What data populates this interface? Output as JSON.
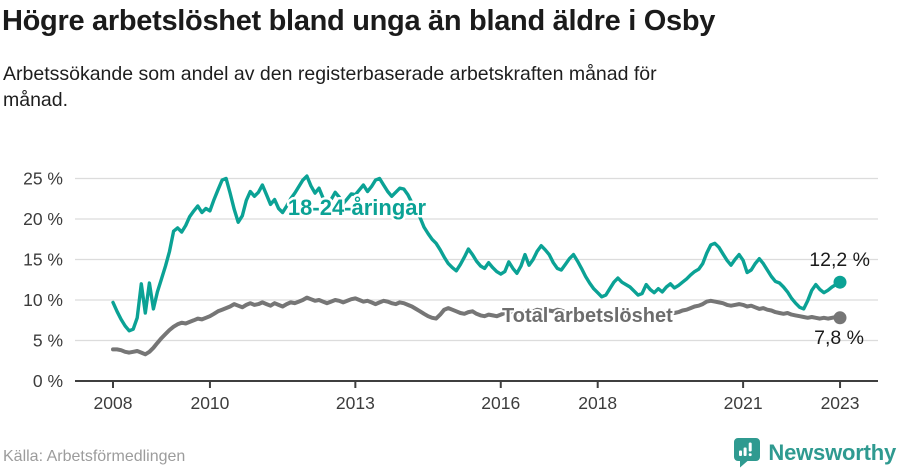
{
  "header": {
    "title": "Högre arbetslöshet bland unga än bland äldre i Osby",
    "subtitle": "Arbetssökande som andel av den registerbaserade arbetskraften månad för\nmånad."
  },
  "footer": {
    "source": "Källa: Arbetsförmedlingen",
    "brand": "Newsworthy",
    "brand_color": "#2f9a90"
  },
  "chart_data": {
    "type": "line",
    "title": "Högre arbetslöshet bland unga än bland äldre i Osby",
    "subtitle": "Arbetssökande som andel av den registerbaserade arbetskraften månad för månad.",
    "unit": "%",
    "x_start_year": 2008,
    "x_start_month": 1,
    "x_frequency": "monthly",
    "x_ticks": [
      2008,
      2010,
      2013,
      2016,
      2018,
      2021,
      2023
    ],
    "y_ticks": [
      {
        "label": "25 %",
        "value": 25
      },
      {
        "label": "20 %",
        "value": 20
      },
      {
        "label": "15 %",
        "value": 15
      },
      {
        "label": "10 %",
        "value": 10
      },
      {
        "label": "5 %",
        "value": 5
      },
      {
        "label": "0 %",
        "value": 0
      }
    ],
    "ylim": [
      0,
      26.5
    ],
    "grid": true,
    "legend_position": "inline-labels",
    "series": [
      {
        "name": "18-24-åringar",
        "color": "#0ba295",
        "label_color": "#0ba295",
        "end_label": "12,2 %",
        "end_value": 12.2,
        "values": [
          9.7,
          8.6,
          7.6,
          6.8,
          6.2,
          6.4,
          7.8,
          12.0,
          8.4,
          12.1,
          8.9,
          11.0,
          12.6,
          14.2,
          16.0,
          18.5,
          18.9,
          18.4,
          19.2,
          20.3,
          21.0,
          21.6,
          20.8,
          21.3,
          21.0,
          22.4,
          23.6,
          24.8,
          25.0,
          23.2,
          21.2,
          19.6,
          20.4,
          22.3,
          23.4,
          22.8,
          23.3,
          24.2,
          23.0,
          21.8,
          22.4,
          21.3,
          20.8,
          21.6,
          22.5,
          23.2,
          24.0,
          24.8,
          25.3,
          24.1,
          23.2,
          23.8,
          22.6,
          21.8,
          22.4,
          23.3,
          22.7,
          21.9,
          22.5,
          23.1,
          23.0,
          23.6,
          24.2,
          23.4,
          24.0,
          24.8,
          25.0,
          24.2,
          23.4,
          22.8,
          23.3,
          23.8,
          23.7,
          23.0,
          22.0,
          21.0,
          20.2,
          19.0,
          18.2,
          17.5,
          17.0,
          16.2,
          15.3,
          14.5,
          14.0,
          13.6,
          14.4,
          15.3,
          16.3,
          15.6,
          14.8,
          14.2,
          13.9,
          14.6,
          14.0,
          13.5,
          13.2,
          13.5,
          14.7,
          13.9,
          13.3,
          14.2,
          15.6,
          14.3,
          15.0,
          16.0,
          16.7,
          16.2,
          15.6,
          14.6,
          13.9,
          13.7,
          14.4,
          15.1,
          15.6,
          14.8,
          13.9,
          12.9,
          12.1,
          11.4,
          10.9,
          10.4,
          10.6,
          11.4,
          12.2,
          12.7,
          12.2,
          11.9,
          11.6,
          11.1,
          10.6,
          10.8,
          11.9,
          11.3,
          10.9,
          11.4,
          11.0,
          11.6,
          12.0,
          11.5,
          11.8,
          12.2,
          12.6,
          13.1,
          13.5,
          13.8,
          14.5,
          15.8,
          16.8,
          17.0,
          16.5,
          15.7,
          14.9,
          14.3,
          15.0,
          15.6,
          14.9,
          13.4,
          13.7,
          14.5,
          15.1,
          14.5,
          13.7,
          12.9,
          12.3,
          12.1,
          11.6,
          11.0,
          10.2,
          9.6,
          9.1,
          8.9,
          9.9,
          11.2,
          11.9,
          11.3,
          10.9,
          11.2,
          11.6,
          11.9,
          12.2
        ]
      },
      {
        "name": "Total arbetslöshet",
        "color": "#767676",
        "label_color": "#6d6d6d",
        "end_label": "7,8 %",
        "end_value": 7.8,
        "values": [
          3.9,
          3.9,
          3.8,
          3.6,
          3.5,
          3.6,
          3.7,
          3.5,
          3.3,
          3.6,
          4.1,
          4.7,
          5.3,
          5.8,
          6.3,
          6.7,
          7.0,
          7.2,
          7.1,
          7.3,
          7.5,
          7.7,
          7.6,
          7.8,
          8.0,
          8.3,
          8.6,
          8.8,
          9.0,
          9.2,
          9.5,
          9.3,
          9.1,
          9.4,
          9.6,
          9.4,
          9.5,
          9.7,
          9.5,
          9.3,
          9.6,
          9.4,
          9.2,
          9.5,
          9.7,
          9.6,
          9.8,
          10.0,
          10.3,
          10.1,
          9.9,
          10.0,
          9.8,
          9.6,
          9.8,
          10.0,
          9.9,
          9.7,
          9.9,
          10.1,
          10.2,
          10.0,
          9.8,
          9.9,
          9.7,
          9.5,
          9.7,
          9.9,
          9.8,
          9.6,
          9.5,
          9.7,
          9.6,
          9.4,
          9.2,
          8.9,
          8.6,
          8.3,
          8.0,
          7.8,
          7.7,
          8.2,
          8.8,
          9.0,
          8.8,
          8.6,
          8.4,
          8.3,
          8.5,
          8.6,
          8.3,
          8.1,
          8.0,
          8.2,
          8.1,
          8.0,
          8.2,
          8.4,
          8.6,
          8.5,
          8.3,
          8.4,
          8.6,
          8.7,
          8.6,
          8.8,
          8.7,
          8.6,
          8.7,
          8.6,
          8.8,
          8.7,
          8.5,
          8.6,
          8.4,
          8.5,
          8.3,
          8.4,
          8.2,
          8.3,
          8.2,
          8.0,
          7.9,
          8.0,
          8.2,
          8.4,
          8.3,
          8.1,
          8.0,
          8.2,
          8.3,
          8.4,
          8.3,
          8.2,
          8.1,
          8.3,
          8.4,
          8.6,
          8.5,
          8.4,
          8.5,
          8.7,
          8.8,
          9.0,
          9.2,
          9.3,
          9.5,
          9.8,
          9.9,
          9.8,
          9.7,
          9.6,
          9.4,
          9.3,
          9.4,
          9.5,
          9.4,
          9.2,
          9.3,
          9.1,
          8.9,
          9.0,
          8.8,
          8.7,
          8.5,
          8.4,
          8.3,
          8.4,
          8.2,
          8.1,
          8.0,
          7.9,
          7.8,
          7.9,
          7.8,
          7.7,
          7.8,
          7.7,
          7.8,
          7.9,
          7.8
        ]
      }
    ]
  }
}
